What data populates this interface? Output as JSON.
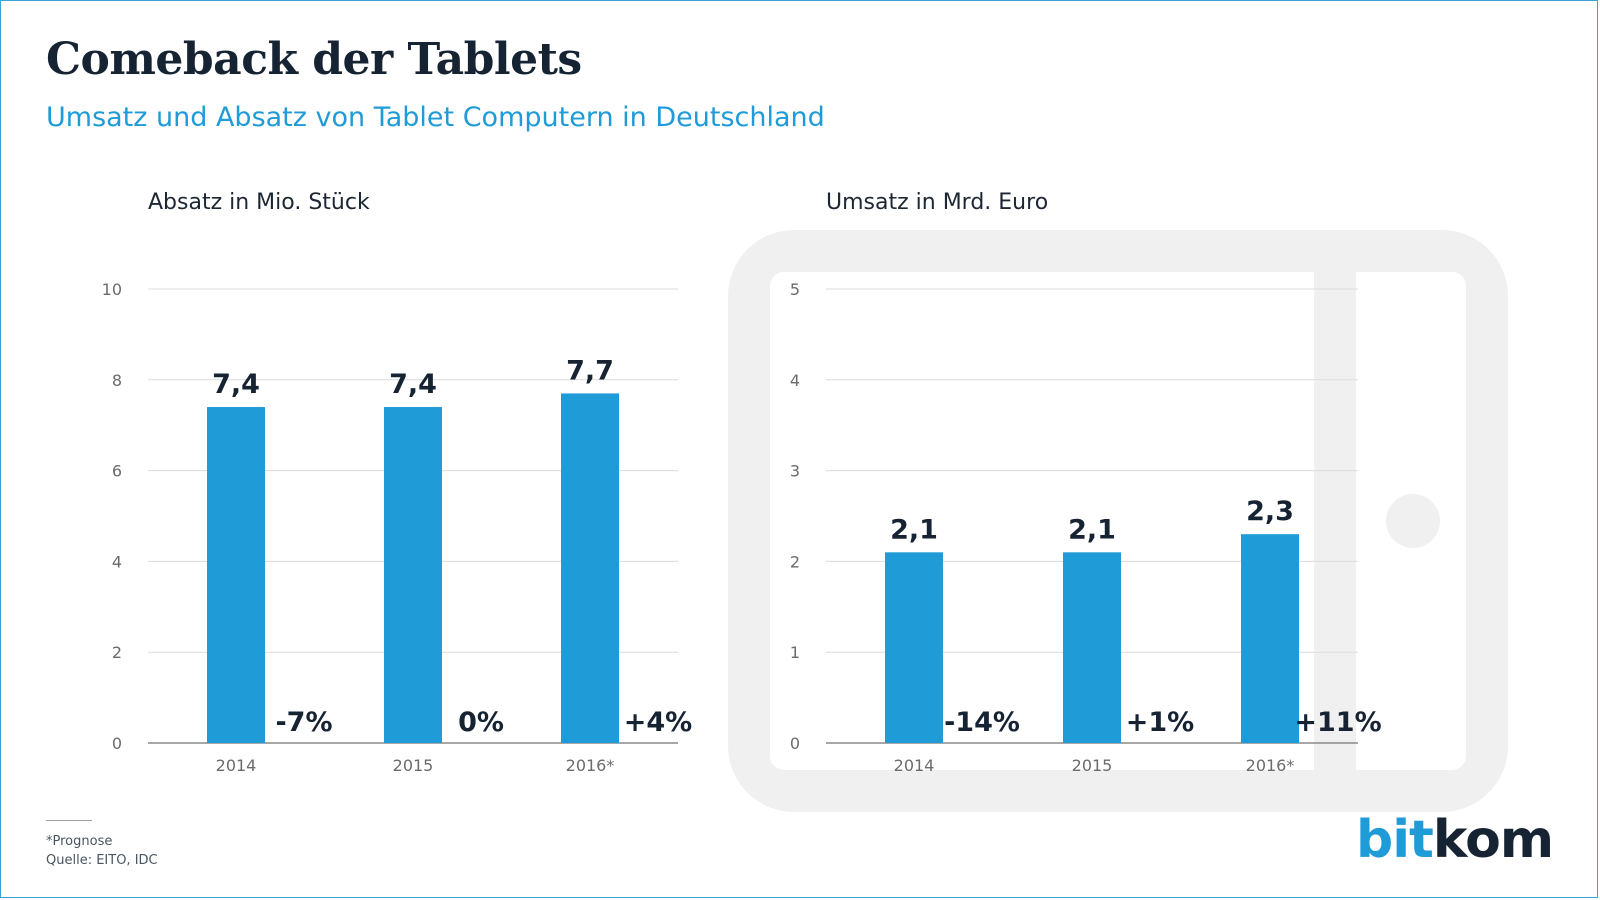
{
  "title": "Comeback der Tablets",
  "subtitle": "Umsatz und Absatz von Tablet Computern in Deutschland",
  "colors": {
    "bar": "#1f9bd7",
    "text_dark": "#152333",
    "grid": "#dcdcdc",
    "axis_text": "#6b6b6b",
    "tablet_bg": "#f0f0f0"
  },
  "icons": {
    "tablet": "tablet-outline-icon"
  },
  "chart_data": [
    {
      "type": "bar",
      "title": "Absatz in Mio. Stück",
      "categories": [
        "2014",
        "2015",
        "2016*"
      ],
      "values": [
        7.4,
        7.4,
        7.7
      ],
      "value_labels": [
        "7,4",
        "7,4",
        "7,7"
      ],
      "change_labels": [
        "-7%",
        "0%",
        "+4%"
      ],
      "yticks": [
        "0",
        "2",
        "4",
        "6",
        "8",
        "10"
      ],
      "ylim": [
        0,
        10
      ],
      "grid": true
    },
    {
      "type": "bar",
      "title": "Umsatz in Mrd. Euro",
      "categories": [
        "2014",
        "2015",
        "2016*"
      ],
      "values": [
        2.1,
        2.1,
        2.3
      ],
      "value_labels": [
        "2,1",
        "2,1",
        "2,3"
      ],
      "change_labels": [
        "-14%",
        "+1%",
        "+11%"
      ],
      "yticks": [
        "0",
        "1",
        "2",
        "3",
        "4",
        "5"
      ],
      "ylim": [
        0,
        5
      ],
      "grid": true
    }
  ],
  "footnote": {
    "note": "*Prognose",
    "source": "Quelle: EITO, IDC"
  },
  "logo": {
    "part1": "bit",
    "part2": "kom"
  }
}
